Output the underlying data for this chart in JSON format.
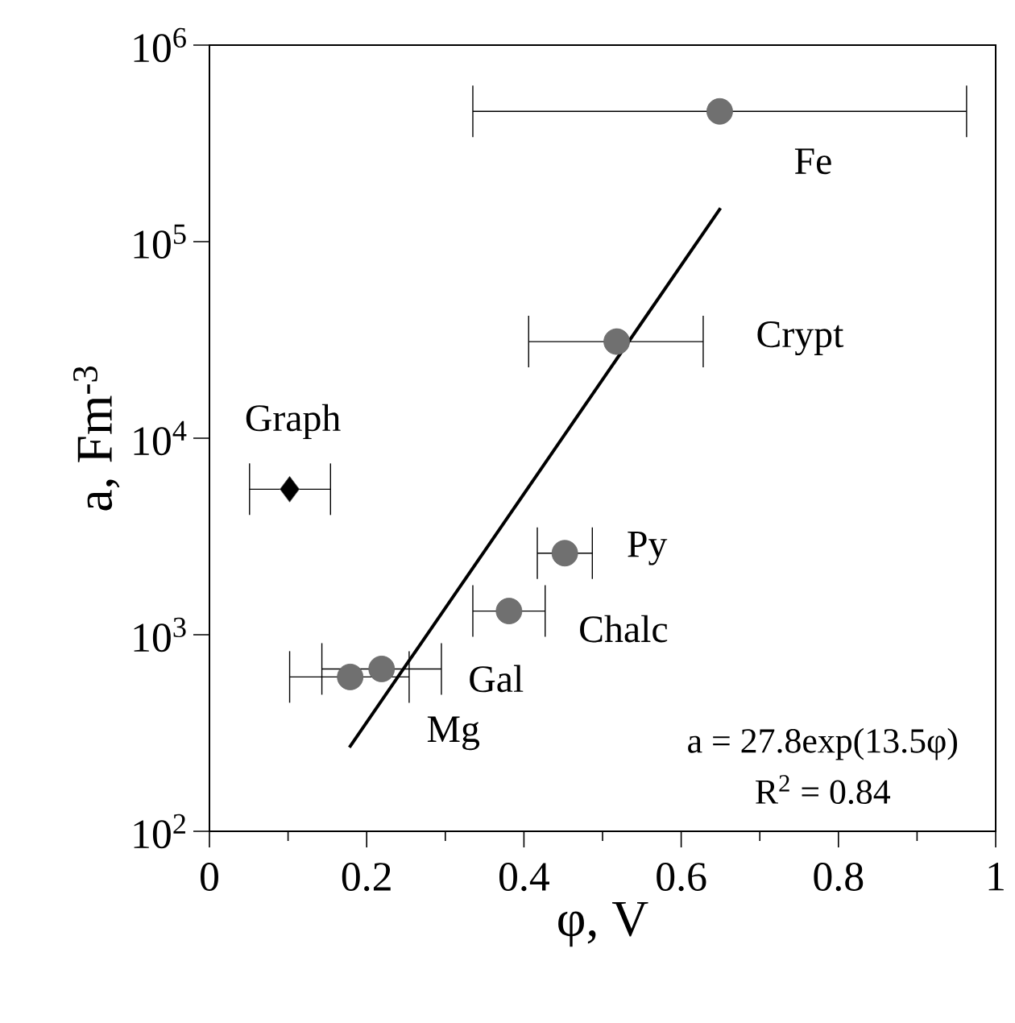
{
  "chart_data": {
    "type": "scatter",
    "xlabel": "φ, V",
    "ylabel": "a, Fm$^{-3}$",
    "log": "y",
    "grid": false,
    "xlim": [
      0,
      1
    ],
    "xticks": [
      0,
      0.2,
      0.4,
      0.6,
      0.8,
      1
    ],
    "ylim": [
      100,
      1000000
    ],
    "yticks": [
      {
        "value": 100,
        "label": "10$^{2}$"
      },
      {
        "value": 1000,
        "label": "10$^{3}$"
      },
      {
        "value": 10000,
        "label": "10$^{4}$"
      },
      {
        "value": 100000,
        "label": "10$^{5}$"
      },
      {
        "value": 1000000,
        "label": "10$^{6}$"
      }
    ],
    "series": [
      {
        "color": "#707070",
        "marker": "circle",
        "x": [
          0.649,
          0.518,
          0.452,
          0.381,
          0.219,
          0.179
        ],
        "values": [
          460000,
          31000,
          2600,
          1320,
          670,
          610
        ],
        "xerrors": [
          [
            0.335,
            0.963
          ],
          [
            0.406,
            0.628
          ],
          [
            0.417,
            0.487
          ],
          [
            0.335,
            0.427
          ],
          [
            0.143,
            0.295
          ],
          [
            0.102,
            0.254
          ]
        ]
      },
      {
        "color": "#000000",
        "marker": "diamond",
        "x": [
          0.102
        ],
        "values": [
          5500
        ],
        "xerrors": [
          [
            0.051,
            0.154
          ]
        ]
      },
      {
        "type": "line",
        "color": "#000000",
        "line_style": "solid",
        "x": [
          0.178,
          0.65
        ],
        "values": [
          267,
          148000
        ]
      }
    ],
    "annotations": [
      {
        "text": "Fe",
        "x": 0.649,
        "y": 460000
      },
      {
        "text": "Crypt",
        "x": 0.628,
        "y": 31000
      },
      {
        "text": "Graph",
        "x": 0.102,
        "y": 5500
      },
      {
        "text": "Py",
        "x": 0.452,
        "y": 2600
      },
      {
        "text": "Chalc",
        "x": 0.381,
        "y": 1320
      },
      {
        "text": "Gal",
        "x": 0.219,
        "y": 670
      },
      {
        "text": "Mg",
        "x": 0.179,
        "y": 610
      },
      "a = 27.8exp(13.5φ)",
      "R$^{2}$ = 0.84"
    ]
  }
}
